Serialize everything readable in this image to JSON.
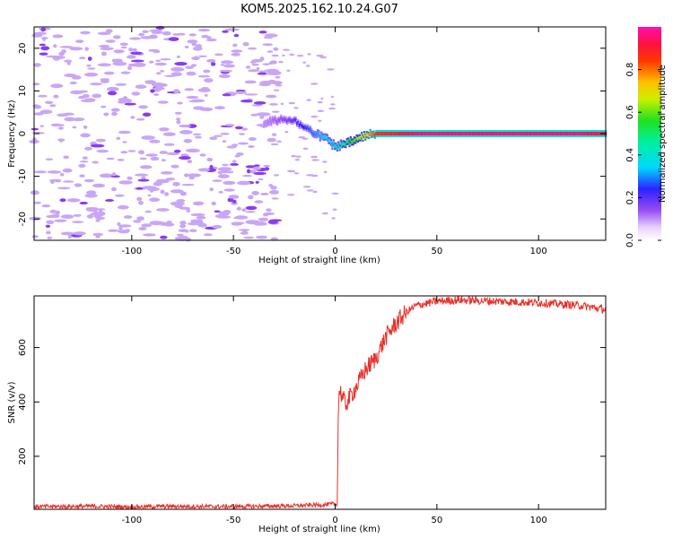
{
  "figure": {
    "title": "KOM5.2025.162.10.24.G07",
    "colors": {
      "axis": "#000000",
      "snr_line": "#e8302a",
      "sparse_blob": "#c9a6f5",
      "sparse_blob_dark": "#8a3cf0"
    }
  },
  "chart_data": [
    {
      "type": "heatmap",
      "title": "KOM5.2025.162.10.24.G07",
      "xlabel": "Height of straight line (km)",
      "ylabel": "Frequency (Hz)",
      "xlim": [
        -148,
        133
      ],
      "ylim": [
        -25,
        25
      ],
      "xticks": [
        -100,
        -50,
        0,
        50,
        100
      ],
      "xtick_labels": [
        "-100",
        "-50",
        "0",
        "50",
        "100"
      ],
      "yticks": [
        -20,
        -10,
        0,
        10,
        20
      ],
      "ytick_labels": [
        "-20",
        "-10",
        "0",
        "10",
        "20"
      ],
      "colorbar": {
        "label": "Normalized spectral amplitude",
        "range": [
          0,
          1
        ],
        "ticks": [
          0.0,
          0.2,
          0.4,
          0.6,
          0.8
        ],
        "tick_labels": [
          "0.0",
          "0.2",
          "0.4",
          "0.6",
          "0.8"
        ],
        "colormap": "rainbow (white-purple-blue-cyan-green-yellow-orange-red-magenta)"
      },
      "dominant_track": {
        "description": "Dominant spectral component versus height",
        "x": [
          -35,
          -25,
          -20,
          -15,
          -10,
          -5,
          0,
          5,
          10,
          15,
          20,
          40,
          60,
          80,
          100,
          120,
          133
        ],
        "y": [
          2.5,
          3.5,
          3,
          1.5,
          0,
          -1,
          -3,
          -2.5,
          -1.5,
          -0.5,
          0,
          0,
          0,
          0,
          0,
          0,
          0
        ],
        "amplitude": [
          0.1,
          0.15,
          0.2,
          0.25,
          0.3,
          0.35,
          0.4,
          0.5,
          0.6,
          0.7,
          0.85,
          0.95,
          0.95,
          0.95,
          0.95,
          0.95,
          0.9
        ]
      },
      "background": "sparse low-amplitude noise for heights below about -30 km"
    },
    {
      "type": "line",
      "xlabel": "Height of straight line (km)",
      "ylabel": "SNR (v/v)",
      "xlim": [
        -148,
        133
      ],
      "ylim": [
        5,
        790
      ],
      "xticks": [
        -100,
        -50,
        0,
        50,
        100
      ],
      "xtick_labels": [
        "-100",
        "-50",
        "0",
        "50",
        "100"
      ],
      "yticks": [
        200,
        400,
        600
      ],
      "ytick_labels": [
        "200",
        "400",
        "600"
      ],
      "series": [
        {
          "color": "#e8302a",
          "x": [
            -148,
            -120,
            -100,
            -80,
            -60,
            -40,
            -20,
            -5,
            1,
            1.5,
            2,
            5,
            10,
            15,
            20,
            25,
            30,
            35,
            40,
            50,
            60,
            80,
            100,
            120,
            133
          ],
          "y": [
            15,
            16,
            14,
            16,
            15,
            16,
            18,
            22,
            25,
            330,
            450,
            390,
            450,
            520,
            560,
            640,
            690,
            730,
            755,
            770,
            775,
            770,
            765,
            755,
            740
          ]
        }
      ]
    }
  ]
}
